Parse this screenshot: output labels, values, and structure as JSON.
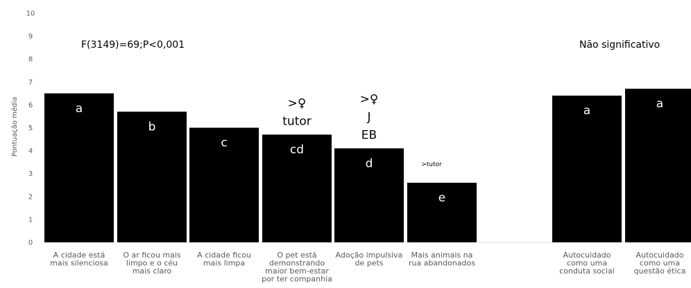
{
  "chart_data": {
    "type": "bar",
    "ylabel": "Pontuação média",
    "ylim": [
      0,
      10
    ],
    "yticks": [
      0,
      1,
      2,
      3,
      4,
      5,
      6,
      7,
      8,
      9,
      10
    ],
    "grid": false,
    "color": "#000000",
    "groups": [
      {
        "stat_label": "F(3149)=69;P<0,001",
        "bars": [
          {
            "category": [
              "A cidade está",
              "mais silenciosa"
            ],
            "value": 6.5,
            "letter": "a",
            "annotation": []
          },
          {
            "category": [
              "O ar ficou mais",
              "limpo e o céu",
              "mais claro"
            ],
            "value": 5.7,
            "letter": "b",
            "annotation": []
          },
          {
            "category": [
              "A cidade ficou",
              "mais limpa"
            ],
            "value": 5.0,
            "letter": "c",
            "annotation": []
          },
          {
            "category": [
              "O pet está",
              "demonstrando",
              "maior bem-estar",
              "por ter companhia"
            ],
            "value": 4.7,
            "letter": "cd",
            "annotation": [
              ">♀",
              "tutor"
            ]
          },
          {
            "category": [
              "Adoção impulsiva",
              "de pets"
            ],
            "value": 4.1,
            "letter": "d",
            "annotation": [
              ">♀",
              "J",
              "EB"
            ]
          },
          {
            "category": [
              "Mais animais na",
              "rua abandonados"
            ],
            "value": 2.6,
            "letter": "e",
            "annotation_small": ">tutor"
          }
        ]
      },
      {
        "stat_label": "Não significativo",
        "bars": [
          {
            "category": [
              "Autocuidado",
              "como uma",
              "conduta social"
            ],
            "value": 6.4,
            "letter": "a",
            "annotation": []
          },
          {
            "category": [
              "Autocuidado",
              "como uma",
              "questão ética"
            ],
            "value": 6.7,
            "letter": "a",
            "annotation": []
          }
        ]
      }
    ]
  }
}
